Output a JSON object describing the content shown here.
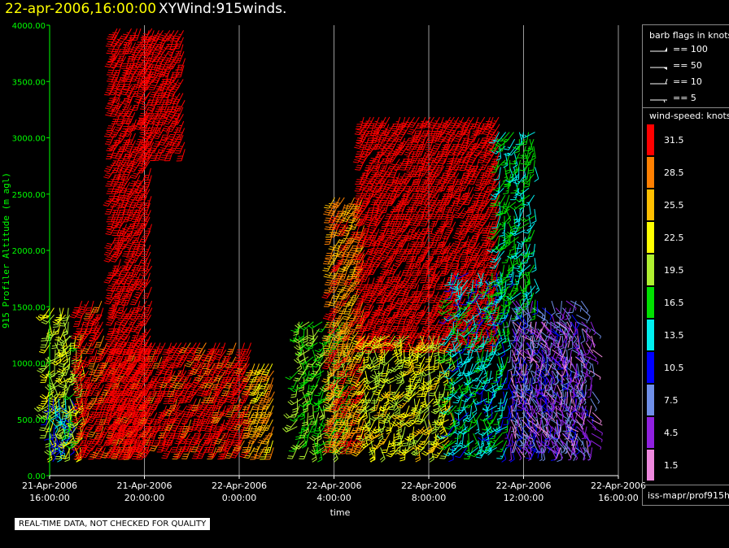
{
  "header": {
    "date_label": "22-apr-2006,16:00:00",
    "title": "XYWind:915winds."
  },
  "chart_data": {
    "type": "scatter",
    "subtype": "wind-barb profile",
    "xlabel": "time",
    "ylabel": "915 Profiler Altitude (m agl)",
    "xlim": [
      "2006-04-21T16:00",
      "2006-04-22T16:00"
    ],
    "ylim": [
      0,
      4000
    ],
    "y_ticks": [
      "0.00",
      "500.00",
      "1000.00",
      "1500.00",
      "2000.00",
      "2500.00",
      "3000.00",
      "3500.00",
      "4000.00"
    ],
    "x_ticks": [
      {
        "line1": "21-Apr-2006",
        "line2": "16:00:00"
      },
      {
        "line1": "21-Apr-2006",
        "line2": "20:00:00"
      },
      {
        "line1": "22-Apr-2006",
        "line2": "0:00:00"
      },
      {
        "line1": "22-Apr-2006",
        "line2": "4:00:00"
      },
      {
        "line1": "22-Apr-2006",
        "line2": "8:00:00"
      },
      {
        "line1": "22-Apr-2006",
        "line2": "12:00:00"
      },
      {
        "line1": "22-Apr-2006",
        "line2": "16:00:00"
      }
    ],
    "vertical_grid": true,
    "colorbar": {
      "title": "wind-speed: knots",
      "levels": [
        {
          "label": "31.5",
          "color": "#ff0000"
        },
        {
          "label": "28.5",
          "color": "#ff8000"
        },
        {
          "label": "25.5",
          "color": "#ffbf00"
        },
        {
          "label": "22.5",
          "color": "#ffff00"
        },
        {
          "label": "19.5",
          "color": "#b0f030"
        },
        {
          "label": "16.5",
          "color": "#00e000"
        },
        {
          "label": "13.5",
          "color": "#00f0f0"
        },
        {
          "label": "10.5",
          "color": "#0000ff"
        },
        {
          "label": "7.5",
          "color": "#6f8fe8"
        },
        {
          "label": "4.5",
          "color": "#9020e0"
        },
        {
          "label": "1.5",
          "color": "#ee88dd"
        }
      ]
    },
    "barb_legend": {
      "title": "barb flags in knots",
      "items": [
        {
          "label": "== 100"
        },
        {
          "label": "== 50"
        },
        {
          "label": "== 10"
        },
        {
          "label": "== 5"
        }
      ]
    },
    "clusters": [
      {
        "t0": 0.0,
        "t1": 0.9,
        "z0": 250,
        "z1": 1500,
        "speed": 21
      },
      {
        "t0": 0.0,
        "t1": 0.9,
        "z0": 250,
        "z1": 700,
        "speed": 12
      },
      {
        "t0": 0.9,
        "t1": 1.4,
        "z0": 250,
        "z1": 1300,
        "speed": 20
      },
      {
        "t0": 1.4,
        "t1": 2.4,
        "z0": 250,
        "z1": 1600,
        "speed": 32
      },
      {
        "t0": 2.4,
        "t1": 6.9,
        "z0": 250,
        "z1": 1200,
        "speed": 32
      },
      {
        "t0": 2.8,
        "t1": 4.4,
        "z0": 250,
        "z1": 4000,
        "speed": 33
      },
      {
        "t0": 4.2,
        "t1": 5.7,
        "z0": 2900,
        "z1": 4000,
        "speed": 33
      },
      {
        "t0": 7.0,
        "t1": 8.6,
        "z0": 250,
        "z1": 1200,
        "speed": 32
      },
      {
        "t0": 8.6,
        "t1": 9.6,
        "z0": 250,
        "z1": 1000,
        "speed": 26
      },
      {
        "t0": 10.5,
        "t1": 12.6,
        "z0": 250,
        "z1": 1400,
        "speed": 18
      },
      {
        "t0": 12.0,
        "t1": 13.3,
        "z0": 300,
        "z1": 2500,
        "speed": 28
      },
      {
        "t0": 13.3,
        "t1": 19.0,
        "z0": 1200,
        "z1": 3200,
        "speed": 33
      },
      {
        "t0": 13.3,
        "t1": 17.0,
        "z0": 250,
        "z1": 1300,
        "speed": 22
      },
      {
        "t0": 17.0,
        "t1": 19.5,
        "z0": 250,
        "z1": 1800,
        "speed": 14
      },
      {
        "t0": 19.0,
        "t1": 20.5,
        "z0": 1500,
        "z1": 3100,
        "speed": 15
      },
      {
        "t0": 19.5,
        "t1": 22.5,
        "z0": 250,
        "z1": 1600,
        "speed": 8
      },
      {
        "t0": 19.5,
        "t1": 23.0,
        "z0": 250,
        "z1": 1400,
        "speed": 4
      }
    ]
  },
  "footer": {
    "source": "iss-mapr/prof915h",
    "quality_note": "REAL-TIME DATA, NOT CHECKED FOR QUALITY"
  }
}
